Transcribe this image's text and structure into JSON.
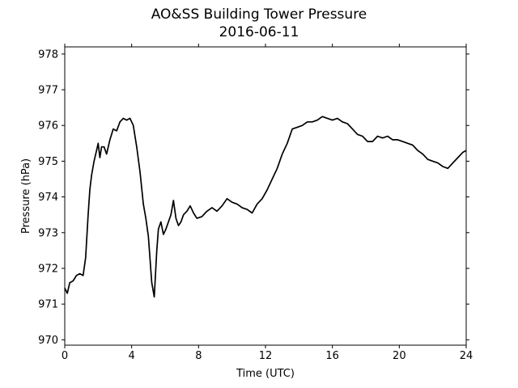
{
  "chart_data": {
    "type": "line",
    "title": "AO&SS Building Tower Pressure",
    "subtitle": "2016-06-11",
    "xlabel": "Time (UTC)",
    "ylabel": "Pressure (hPa)",
    "xlim": [
      0,
      24
    ],
    "ylim": [
      969.85,
      978.2
    ],
    "xticks": [
      0,
      4,
      8,
      12,
      16,
      20,
      24
    ],
    "yticks": [
      970,
      971,
      972,
      973,
      974,
      975,
      976,
      977,
      978
    ],
    "grid": false,
    "line_color": "#000000",
    "x": [
      0,
      0.15,
      0.3,
      0.5,
      0.7,
      0.9,
      1.1,
      1.25,
      1.4,
      1.5,
      1.6,
      1.75,
      1.9,
      2.0,
      2.1,
      2.2,
      2.35,
      2.5,
      2.7,
      2.9,
      3.1,
      3.3,
      3.5,
      3.7,
      3.9,
      4.1,
      4.3,
      4.5,
      4.7,
      4.85,
      5.0,
      5.2,
      5.35,
      5.5,
      5.6,
      5.75,
      5.9,
      6.05,
      6.2,
      6.35,
      6.5,
      6.65,
      6.8,
      6.95,
      7.1,
      7.3,
      7.5,
      7.7,
      7.9,
      8.2,
      8.5,
      8.8,
      9.1,
      9.4,
      9.7,
      10.0,
      10.3,
      10.6,
      10.9,
      11.2,
      11.5,
      11.8,
      12.1,
      12.4,
      12.7,
      13.0,
      13.3,
      13.6,
      13.9,
      14.2,
      14.5,
      14.8,
      15.1,
      15.4,
      15.7,
      16.0,
      16.3,
      16.6,
      16.9,
      17.2,
      17.5,
      17.8,
      18.1,
      18.4,
      18.7,
      19.0,
      19.3,
      19.6,
      19.9,
      20.2,
      20.5,
      20.8,
      21.1,
      21.4,
      21.7,
      22.0,
      22.3,
      22.6,
      22.9,
      23.2,
      23.5,
      23.8,
      24.0
    ],
    "values": [
      971.45,
      971.3,
      971.6,
      971.65,
      971.8,
      971.85,
      971.8,
      972.3,
      973.5,
      974.2,
      974.6,
      975.0,
      975.3,
      975.5,
      975.1,
      975.4,
      975.4,
      975.2,
      975.6,
      975.9,
      975.85,
      976.1,
      976.2,
      976.15,
      976.2,
      976.0,
      975.4,
      974.7,
      973.8,
      973.4,
      972.9,
      971.6,
      971.2,
      972.5,
      973.1,
      973.3,
      972.95,
      973.1,
      973.3,
      973.5,
      973.9,
      973.4,
      973.2,
      973.3,
      973.5,
      973.6,
      973.75,
      973.55,
      973.4,
      973.45,
      973.6,
      973.7,
      973.6,
      973.75,
      973.95,
      973.85,
      973.8,
      973.7,
      973.65,
      973.55,
      973.8,
      973.95,
      974.2,
      974.5,
      974.8,
      975.2,
      975.5,
      975.9,
      975.95,
      976.0,
      976.1,
      976.1,
      976.15,
      976.25,
      976.2,
      976.15,
      976.2,
      976.1,
      976.05,
      975.9,
      975.75,
      975.7,
      975.55,
      975.55,
      975.7,
      975.65,
      975.7,
      975.6,
      975.6,
      975.55,
      975.5,
      975.45,
      975.3,
      975.2,
      975.05,
      975.0,
      974.95,
      974.85,
      974.8,
      974.95,
      975.1,
      975.25,
      975.3
    ]
  }
}
